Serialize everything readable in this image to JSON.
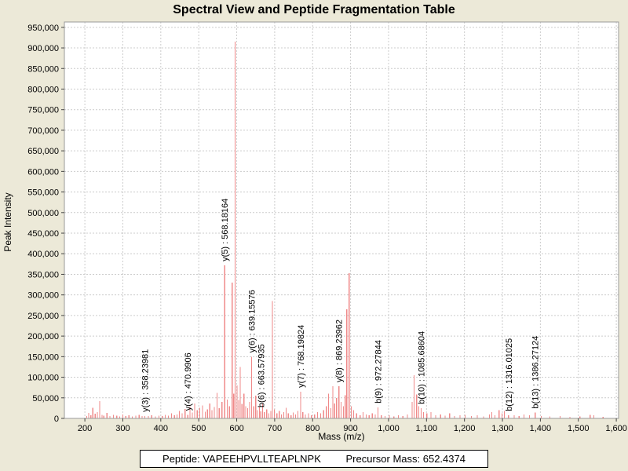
{
  "title": "Spectral View and Peptide Fragmentation Table",
  "colors": {
    "background": "#ece9d8",
    "plot_background": "#ffffff",
    "grid": "#cccccc",
    "axis_border": "#9a9a9a",
    "tick": "#444444",
    "peak": "#ef8a8a",
    "text": "#000000"
  },
  "chart_data": {
    "type": "bar",
    "title": "Spectral View and Peptide Fragmentation Table",
    "xlabel": "Mass (m/z)",
    "ylabel": "Peak Intensity",
    "xlim": [
      146,
      1606
    ],
    "ylim": [
      0,
      963000
    ],
    "grid": true,
    "x_ticks": [
      200,
      300,
      400,
      500,
      600,
      700,
      800,
      900,
      1000,
      1100,
      1200,
      1300,
      1400,
      1500,
      1600
    ],
    "y_ticks": [
      0,
      50000,
      100000,
      150000,
      200000,
      250000,
      300000,
      350000,
      400000,
      450000,
      500000,
      550000,
      600000,
      650000,
      700000,
      750000,
      800000,
      850000,
      900000,
      950000
    ],
    "peaks": [
      [
        205,
        6000
      ],
      [
        210,
        13000
      ],
      [
        216,
        8000
      ],
      [
        221,
        26000
      ],
      [
        227,
        11000
      ],
      [
        233,
        15000
      ],
      [
        239,
        42000
      ],
      [
        245,
        9000
      ],
      [
        250,
        7000
      ],
      [
        258,
        13000
      ],
      [
        266,
        6000
      ],
      [
        275,
        9000
      ],
      [
        284,
        7000
      ],
      [
        292,
        5000
      ],
      [
        300,
        10000
      ],
      [
        308,
        6000
      ],
      [
        316,
        8000
      ],
      [
        325,
        5000
      ],
      [
        334,
        7000
      ],
      [
        343,
        9000
      ],
      [
        351,
        6000
      ],
      [
        358.23981,
        6000
      ],
      [
        367,
        6000
      ],
      [
        376,
        8000
      ],
      [
        386,
        5000
      ],
      [
        395,
        7000
      ],
      [
        404,
        6000
      ],
      [
        412,
        9000
      ],
      [
        420,
        7000
      ],
      [
        428,
        12000
      ],
      [
        436,
        8000
      ],
      [
        443,
        10000
      ],
      [
        449,
        18000
      ],
      [
        456,
        12000
      ],
      [
        464,
        23000
      ],
      [
        470.9906,
        9000
      ],
      [
        477,
        30000
      ],
      [
        483,
        14000
      ],
      [
        489,
        36000
      ],
      [
        496,
        20000
      ],
      [
        503,
        26000
      ],
      [
        510,
        31000
      ],
      [
        517,
        16000
      ],
      [
        523,
        22000
      ],
      [
        529,
        36000
      ],
      [
        535,
        20000
      ],
      [
        541,
        28000
      ],
      [
        548,
        62000
      ],
      [
        554,
        25000
      ],
      [
        561,
        40000
      ],
      [
        568.18164,
        372000
      ],
      [
        575,
        46000
      ],
      [
        581,
        30000
      ],
      [
        588,
        330000
      ],
      [
        592,
        60000
      ],
      [
        596,
        915000
      ],
      [
        601,
        80000
      ],
      [
        605,
        45000
      ],
      [
        609,
        125000
      ],
      [
        614,
        35000
      ],
      [
        619,
        60000
      ],
      [
        624,
        30000
      ],
      [
        629,
        25000
      ],
      [
        634,
        40000
      ],
      [
        639.15576,
        150000
      ],
      [
        645,
        30000
      ],
      [
        650,
        55000
      ],
      [
        655,
        20000
      ],
      [
        660,
        28000
      ],
      [
        663.57935,
        17000
      ],
      [
        668,
        35000
      ],
      [
        673,
        15000
      ],
      [
        679,
        22000
      ],
      [
        685,
        12000
      ],
      [
        690,
        18000
      ],
      [
        694,
        285000
      ],
      [
        699,
        22000
      ],
      [
        706,
        12000
      ],
      [
        712,
        18000
      ],
      [
        718,
        10000
      ],
      [
        724,
        15000
      ],
      [
        730,
        26000
      ],
      [
        736,
        12000
      ],
      [
        743,
        8000
      ],
      [
        749,
        14000
      ],
      [
        755,
        10000
      ],
      [
        761,
        18000
      ],
      [
        768.19824,
        65000
      ],
      [
        774,
        15000
      ],
      [
        781,
        10000
      ],
      [
        789,
        12000
      ],
      [
        797,
        8000
      ],
      [
        805,
        10000
      ],
      [
        813,
        15000
      ],
      [
        821,
        12000
      ],
      [
        829,
        20000
      ],
      [
        836,
        30000
      ],
      [
        842,
        60000
      ],
      [
        848,
        25000
      ],
      [
        853,
        78000
      ],
      [
        858,
        36000
      ],
      [
        863,
        50000
      ],
      [
        869.23962,
        78000
      ],
      [
        875,
        40000
      ],
      [
        881,
        30000
      ],
      [
        886,
        56000
      ],
      [
        890,
        265000
      ],
      [
        896,
        353000
      ],
      [
        902,
        30000
      ],
      [
        908,
        20000
      ],
      [
        916,
        12000
      ],
      [
        925,
        8000
      ],
      [
        933,
        15000
      ],
      [
        941,
        10000
      ],
      [
        949,
        8000
      ],
      [
        957,
        12000
      ],
      [
        965,
        10000
      ],
      [
        972.27844,
        27000
      ],
      [
        981,
        8000
      ],
      [
        991,
        6000
      ],
      [
        1002,
        8000
      ],
      [
        1014,
        5000
      ],
      [
        1026,
        8000
      ],
      [
        1038,
        6000
      ],
      [
        1050,
        10000
      ],
      [
        1062,
        40000
      ],
      [
        1067,
        105000
      ],
      [
        1074,
        58000
      ],
      [
        1080,
        30000
      ],
      [
        1085.68604,
        25000
      ],
      [
        1092,
        15000
      ],
      [
        1101,
        12000
      ],
      [
        1112,
        15000
      ],
      [
        1124,
        8000
      ],
      [
        1137,
        10000
      ],
      [
        1149,
        7000
      ],
      [
        1161,
        12000
      ],
      [
        1174,
        6000
      ],
      [
        1188,
        8000
      ],
      [
        1202,
        9000
      ],
      [
        1218,
        6000
      ],
      [
        1234,
        8000
      ],
      [
        1250,
        5000
      ],
      [
        1266,
        10000
      ],
      [
        1272,
        15000
      ],
      [
        1280,
        8000
      ],
      [
        1291,
        20000
      ],
      [
        1299,
        12000
      ],
      [
        1305,
        18000
      ],
      [
        1316.01025,
        8000
      ],
      [
        1331,
        8000
      ],
      [
        1344,
        6000
      ],
      [
        1357,
        10000
      ],
      [
        1371,
        8000
      ],
      [
        1386.27124,
        14000
      ],
      [
        1402,
        6000
      ],
      [
        1425,
        5000
      ],
      [
        1452,
        6000
      ],
      [
        1478,
        4000
      ],
      [
        1504,
        5000
      ],
      [
        1531,
        9000
      ],
      [
        1541,
        8000
      ],
      [
        1565,
        4000
      ]
    ],
    "annotations": [
      {
        "ion": "y(3)",
        "mz": 358.23981,
        "intensity": 6000
      },
      {
        "ion": "y(4)",
        "mz": 470.9906,
        "intensity": 9000
      },
      {
        "ion": "y(5)",
        "mz": 568.18164,
        "intensity": 372000
      },
      {
        "ion": "y(6)",
        "mz": 639.15576,
        "intensity": 150000
      },
      {
        "ion": "b(6)",
        "mz": 663.57935,
        "intensity": 17000
      },
      {
        "ion": "y(7)",
        "mz": 768.19824,
        "intensity": 65000
      },
      {
        "ion": "y(8)",
        "mz": 869.23962,
        "intensity": 78000
      },
      {
        "ion": "b(9)",
        "mz": 972.27844,
        "intensity": 27000
      },
      {
        "ion": "b(10)",
        "mz": 1085.68604,
        "intensity": 25000
      },
      {
        "ion": "b(12)",
        "mz": 1316.01025,
        "intensity": 8000
      },
      {
        "ion": "b(13)",
        "mz": 1386.27124,
        "intensity": 14000
      }
    ]
  },
  "footer": {
    "peptide_label": "Peptide: VAPEEHPVLLTEAPLNPK",
    "precursor_label": "Precursor Mass: 652.4374"
  }
}
